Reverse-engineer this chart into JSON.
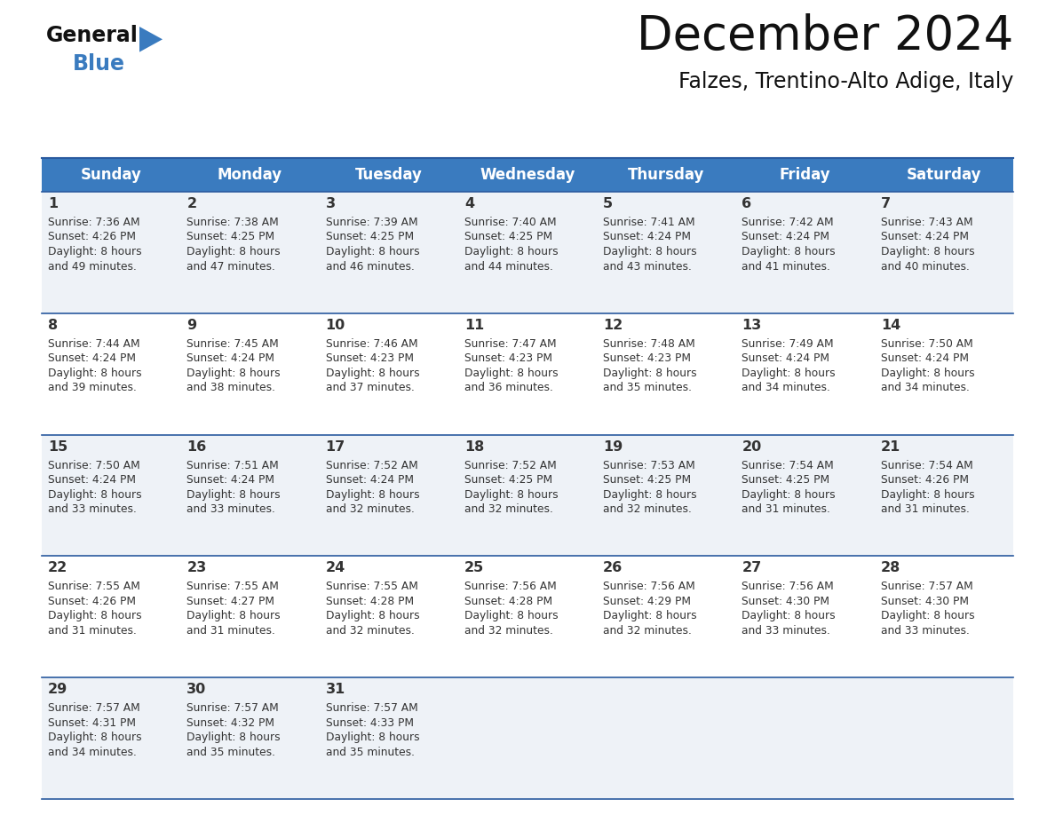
{
  "title": "December 2024",
  "subtitle": "Falzes, Trentino-Alto Adige, Italy",
  "days_of_week": [
    "Sunday",
    "Monday",
    "Tuesday",
    "Wednesday",
    "Thursday",
    "Friday",
    "Saturday"
  ],
  "header_bg": "#3a7bbf",
  "header_text": "#ffffff",
  "row_bg_odd": "#eef2f7",
  "row_bg_even": "#ffffff",
  "border_color": "#2a5a9f",
  "cell_text_color": "#333333",
  "days": [
    {
      "day": 1,
      "col": 0,
      "row": 0,
      "sunrise": "7:36 AM",
      "sunset": "4:26 PM",
      "daylight_h": "8 hours",
      "daylight_m": "and 49 minutes."
    },
    {
      "day": 2,
      "col": 1,
      "row": 0,
      "sunrise": "7:38 AM",
      "sunset": "4:25 PM",
      "daylight_h": "8 hours",
      "daylight_m": "and 47 minutes."
    },
    {
      "day": 3,
      "col": 2,
      "row": 0,
      "sunrise": "7:39 AM",
      "sunset": "4:25 PM",
      "daylight_h": "8 hours",
      "daylight_m": "and 46 minutes."
    },
    {
      "day": 4,
      "col": 3,
      "row": 0,
      "sunrise": "7:40 AM",
      "sunset": "4:25 PM",
      "daylight_h": "8 hours",
      "daylight_m": "and 44 minutes."
    },
    {
      "day": 5,
      "col": 4,
      "row": 0,
      "sunrise": "7:41 AM",
      "sunset": "4:24 PM",
      "daylight_h": "8 hours",
      "daylight_m": "and 43 minutes."
    },
    {
      "day": 6,
      "col": 5,
      "row": 0,
      "sunrise": "7:42 AM",
      "sunset": "4:24 PM",
      "daylight_h": "8 hours",
      "daylight_m": "and 41 minutes."
    },
    {
      "day": 7,
      "col": 6,
      "row": 0,
      "sunrise": "7:43 AM",
      "sunset": "4:24 PM",
      "daylight_h": "8 hours",
      "daylight_m": "and 40 minutes."
    },
    {
      "day": 8,
      "col": 0,
      "row": 1,
      "sunrise": "7:44 AM",
      "sunset": "4:24 PM",
      "daylight_h": "8 hours",
      "daylight_m": "and 39 minutes."
    },
    {
      "day": 9,
      "col": 1,
      "row": 1,
      "sunrise": "7:45 AM",
      "sunset": "4:24 PM",
      "daylight_h": "8 hours",
      "daylight_m": "and 38 minutes."
    },
    {
      "day": 10,
      "col": 2,
      "row": 1,
      "sunrise": "7:46 AM",
      "sunset": "4:23 PM",
      "daylight_h": "8 hours",
      "daylight_m": "and 37 minutes."
    },
    {
      "day": 11,
      "col": 3,
      "row": 1,
      "sunrise": "7:47 AM",
      "sunset": "4:23 PM",
      "daylight_h": "8 hours",
      "daylight_m": "and 36 minutes."
    },
    {
      "day": 12,
      "col": 4,
      "row": 1,
      "sunrise": "7:48 AM",
      "sunset": "4:23 PM",
      "daylight_h": "8 hours",
      "daylight_m": "and 35 minutes."
    },
    {
      "day": 13,
      "col": 5,
      "row": 1,
      "sunrise": "7:49 AM",
      "sunset": "4:24 PM",
      "daylight_h": "8 hours",
      "daylight_m": "and 34 minutes."
    },
    {
      "day": 14,
      "col": 6,
      "row": 1,
      "sunrise": "7:50 AM",
      "sunset": "4:24 PM",
      "daylight_h": "8 hours",
      "daylight_m": "and 34 minutes."
    },
    {
      "day": 15,
      "col": 0,
      "row": 2,
      "sunrise": "7:50 AM",
      "sunset": "4:24 PM",
      "daylight_h": "8 hours",
      "daylight_m": "and 33 minutes."
    },
    {
      "day": 16,
      "col": 1,
      "row": 2,
      "sunrise": "7:51 AM",
      "sunset": "4:24 PM",
      "daylight_h": "8 hours",
      "daylight_m": "and 33 minutes."
    },
    {
      "day": 17,
      "col": 2,
      "row": 2,
      "sunrise": "7:52 AM",
      "sunset": "4:24 PM",
      "daylight_h": "8 hours",
      "daylight_m": "and 32 minutes."
    },
    {
      "day": 18,
      "col": 3,
      "row": 2,
      "sunrise": "7:52 AM",
      "sunset": "4:25 PM",
      "daylight_h": "8 hours",
      "daylight_m": "and 32 minutes."
    },
    {
      "day": 19,
      "col": 4,
      "row": 2,
      "sunrise": "7:53 AM",
      "sunset": "4:25 PM",
      "daylight_h": "8 hours",
      "daylight_m": "and 32 minutes."
    },
    {
      "day": 20,
      "col": 5,
      "row": 2,
      "sunrise": "7:54 AM",
      "sunset": "4:25 PM",
      "daylight_h": "8 hours",
      "daylight_m": "and 31 minutes."
    },
    {
      "day": 21,
      "col": 6,
      "row": 2,
      "sunrise": "7:54 AM",
      "sunset": "4:26 PM",
      "daylight_h": "8 hours",
      "daylight_m": "and 31 minutes."
    },
    {
      "day": 22,
      "col": 0,
      "row": 3,
      "sunrise": "7:55 AM",
      "sunset": "4:26 PM",
      "daylight_h": "8 hours",
      "daylight_m": "and 31 minutes."
    },
    {
      "day": 23,
      "col": 1,
      "row": 3,
      "sunrise": "7:55 AM",
      "sunset": "4:27 PM",
      "daylight_h": "8 hours",
      "daylight_m": "and 31 minutes."
    },
    {
      "day": 24,
      "col": 2,
      "row": 3,
      "sunrise": "7:55 AM",
      "sunset": "4:28 PM",
      "daylight_h": "8 hours",
      "daylight_m": "and 32 minutes."
    },
    {
      "day": 25,
      "col": 3,
      "row": 3,
      "sunrise": "7:56 AM",
      "sunset": "4:28 PM",
      "daylight_h": "8 hours",
      "daylight_m": "and 32 minutes."
    },
    {
      "day": 26,
      "col": 4,
      "row": 3,
      "sunrise": "7:56 AM",
      "sunset": "4:29 PM",
      "daylight_h": "8 hours",
      "daylight_m": "and 32 minutes."
    },
    {
      "day": 27,
      "col": 5,
      "row": 3,
      "sunrise": "7:56 AM",
      "sunset": "4:30 PM",
      "daylight_h": "8 hours",
      "daylight_m": "and 33 minutes."
    },
    {
      "day": 28,
      "col": 6,
      "row": 3,
      "sunrise": "7:57 AM",
      "sunset": "4:30 PM",
      "daylight_h": "8 hours",
      "daylight_m": "and 33 minutes."
    },
    {
      "day": 29,
      "col": 0,
      "row": 4,
      "sunrise": "7:57 AM",
      "sunset": "4:31 PM",
      "daylight_h": "8 hours",
      "daylight_m": "and 34 minutes."
    },
    {
      "day": 30,
      "col": 1,
      "row": 4,
      "sunrise": "7:57 AM",
      "sunset": "4:32 PM",
      "daylight_h": "8 hours",
      "daylight_m": "and 35 minutes."
    },
    {
      "day": 31,
      "col": 2,
      "row": 4,
      "sunrise": "7:57 AM",
      "sunset": "4:33 PM",
      "daylight_h": "8 hours",
      "daylight_m": "and 35 minutes."
    }
  ]
}
